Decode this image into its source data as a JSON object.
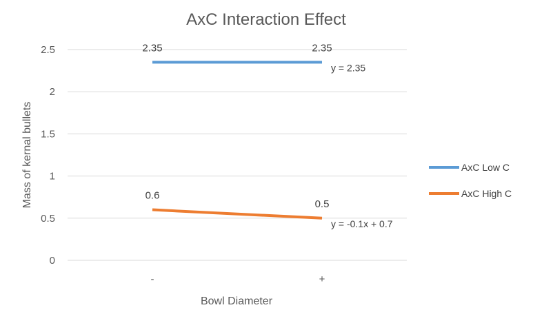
{
  "chart_data": {
    "type": "line",
    "title": "AxC Interaction Effect",
    "xlabel": "Bowl Diameter",
    "ylabel": "Mass of kernal bullets",
    "categories": [
      "-",
      "+"
    ],
    "ylim": [
      0,
      2.5
    ],
    "yticks": [
      "0",
      "0.5",
      "1",
      "1.5",
      "2",
      "2.5"
    ],
    "grid": true,
    "legend_position": "right",
    "series": [
      {
        "name": "AxC Low C",
        "values": [
          2.35,
          2.35
        ],
        "data_labels": [
          "2.35",
          "2.35"
        ],
        "trendline": "y = 2.35",
        "color": "#5b9bd5"
      },
      {
        "name": "AxC High C",
        "values": [
          0.6,
          0.5
        ],
        "data_labels": [
          "0.6",
          "0.5"
        ],
        "trendline": "y = -0.1x + 0.7",
        "color": "#ed7d31"
      }
    ]
  }
}
